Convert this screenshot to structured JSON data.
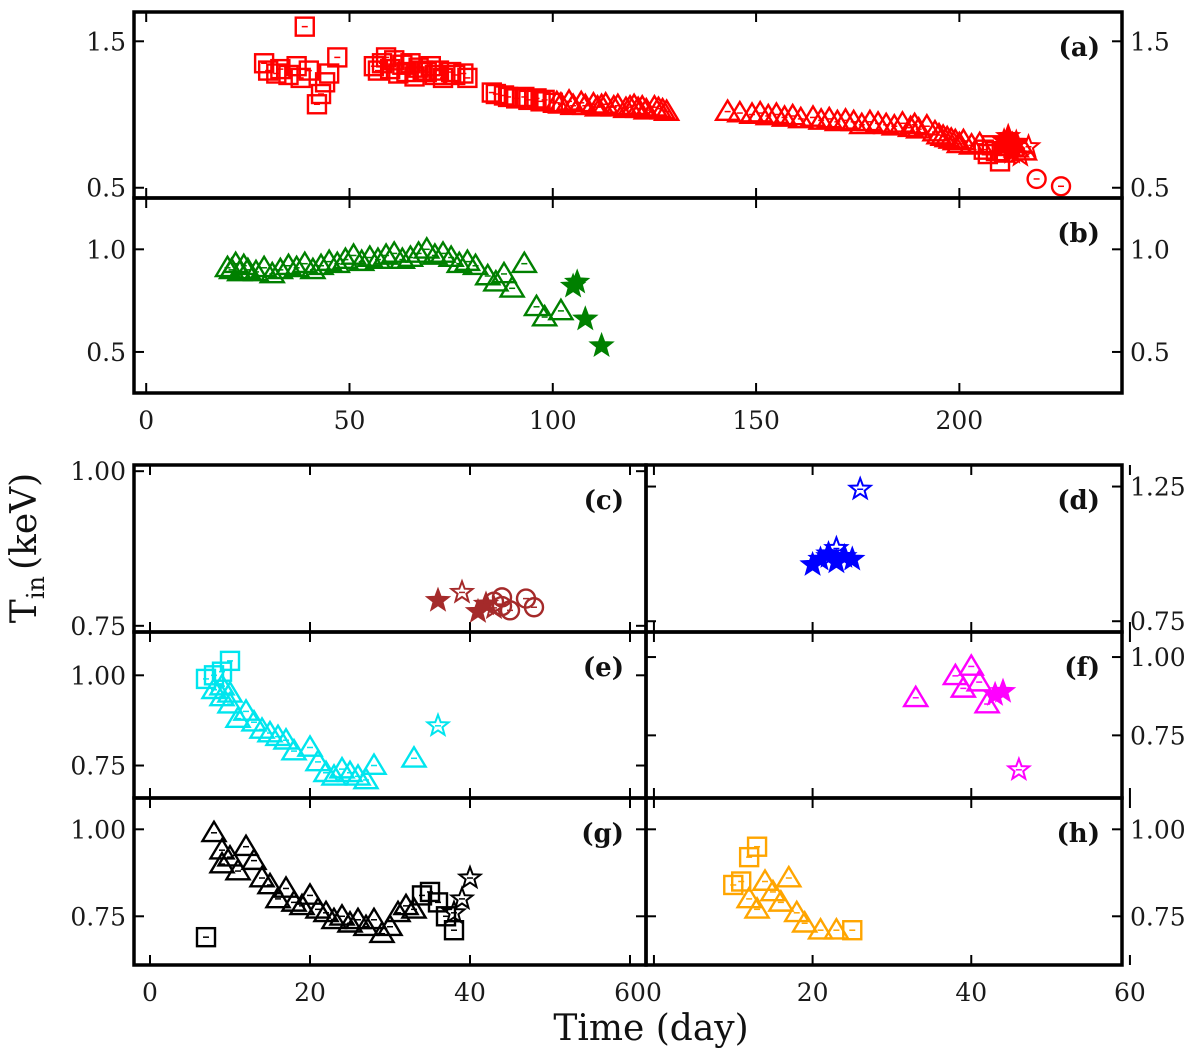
{
  "figure": {
    "xlabel": "Time (day)",
    "ylabel": "T",
    "ylabel_sub": "in",
    "ylabel_unit": "(keV)"
  },
  "chart_data": [
    {
      "panel": "(a)",
      "type": "scatter",
      "xlabel": "",
      "ylabel": "",
      "xlim": [
        -3,
        240
      ],
      "ylim": [
        0.43,
        1.7
      ],
      "xticks": [
        "0",
        "50",
        "100",
        "150",
        "200"
      ],
      "xtick_values": [
        0,
        50,
        100,
        150,
        200
      ],
      "yticks": [
        "0.5",
        "1.5"
      ],
      "ytick_values": [
        0.5,
        1.5
      ],
      "xtick_labels_shown": false,
      "series": [
        {
          "marker": "square",
          "color": "#ff0000",
          "filled": false,
          "x": [
            29,
            30,
            32,
            33,
            35,
            37,
            38,
            39,
            40,
            42,
            43,
            44,
            45,
            47,
            56,
            57,
            58,
            59,
            60,
            61,
            62,
            63,
            64,
            65,
            66,
            67,
            68,
            69,
            70,
            71,
            72,
            73,
            75,
            76,
            78,
            79,
            85,
            86,
            88,
            89,
            91,
            93,
            94,
            96,
            97,
            98,
            100,
            206,
            207,
            208,
            209,
            210,
            211
          ],
          "y": [
            1.35,
            1.3,
            1.28,
            1.31,
            1.27,
            1.33,
            1.25,
            1.6,
            1.3,
            1.07,
            1.14,
            1.22,
            1.28,
            1.39,
            1.33,
            1.3,
            1.35,
            1.39,
            1.31,
            1.37,
            1.28,
            1.34,
            1.29,
            1.35,
            1.26,
            1.32,
            1.3,
            1.29,
            1.33,
            1.27,
            1.3,
            1.25,
            1.29,
            1.27,
            1.28,
            1.25,
            1.15,
            1.14,
            1.13,
            1.12,
            1.11,
            1.12,
            1.1,
            1.11,
            1.09,
            1.1,
            1.08,
            0.76,
            0.73,
            0.79,
            0.75,
            0.68,
            0.74
          ]
        },
        {
          "marker": "triangle",
          "color": "#ff0000",
          "filled": false,
          "x": [
            101,
            102,
            104,
            105,
            107,
            108,
            110,
            111,
            112,
            113,
            115,
            116,
            118,
            119,
            120,
            121,
            122,
            123,
            125,
            126,
            127,
            128,
            143,
            146,
            149,
            151,
            153,
            155,
            157,
            159,
            161,
            164,
            166,
            168,
            170,
            172,
            174,
            176,
            178,
            180,
            182,
            184,
            186,
            188,
            189,
            190,
            192,
            194,
            195,
            196,
            197,
            198,
            199,
            200,
            201,
            203,
            205,
            212,
            213,
            214,
            216
          ],
          "y": [
            1.08,
            1.07,
            1.09,
            1.06,
            1.08,
            1.06,
            1.07,
            1.05,
            1.06,
            1.07,
            1.05,
            1.06,
            1.04,
            1.05,
            1.06,
            1.04,
            1.05,
            1.03,
            1.05,
            1.04,
            1.03,
            1.02,
            1.02,
            1.01,
            1.0,
            1.01,
            0.99,
            1.0,
            0.98,
            0.99,
            0.97,
            0.98,
            0.96,
            0.97,
            0.95,
            0.96,
            0.95,
            0.93,
            0.95,
            0.94,
            0.93,
            0.92,
            0.94,
            0.91,
            0.93,
            0.9,
            0.92,
            0.88,
            0.86,
            0.85,
            0.84,
            0.83,
            0.82,
            0.8,
            0.82,
            0.79,
            0.8,
            0.78,
            0.8,
            0.77,
            0.75
          ]
        },
        {
          "marker": "star",
          "color": "#ff0000",
          "filled": true,
          "x": [
            211,
            212,
            213,
            214
          ],
          "y": [
            0.82,
            0.85,
            0.74,
            0.81
          ]
        },
        {
          "marker": "star",
          "color": "#ff0000",
          "filled": false,
          "x": [
            215,
            217
          ],
          "y": [
            0.72,
            0.78
          ]
        },
        {
          "marker": "circle",
          "color": "#ff0000",
          "filled": false,
          "x": [
            219,
            225
          ],
          "y": [
            0.56,
            0.51
          ]
        }
      ]
    },
    {
      "panel": "(b)",
      "type": "scatter",
      "xlabel": "",
      "ylabel": "",
      "xlim": [
        -3,
        240
      ],
      "ylim": [
        0.3,
        1.25
      ],
      "xticks": [
        "0",
        "50",
        "100",
        "150",
        "200"
      ],
      "xtick_values": [
        0,
        50,
        100,
        150,
        200
      ],
      "yticks": [
        "0.5",
        "1.0"
      ],
      "ytick_values": [
        0.5,
        1.0
      ],
      "xtick_labels_shown": true,
      "series": [
        {
          "marker": "triangle",
          "color": "#008000",
          "filled": false,
          "x": [
            20,
            21,
            22,
            23,
            24,
            25,
            27,
            29,
            31,
            33,
            35,
            37,
            39,
            41,
            43,
            45,
            47,
            49,
            51,
            53,
            55,
            57,
            59,
            61,
            63,
            65,
            67,
            69,
            71,
            73,
            75,
            77,
            79,
            81,
            84,
            86,
            88,
            90,
            93,
            96,
            98,
            102
          ],
          "y": [
            0.91,
            0.9,
            0.93,
            0.89,
            0.92,
            0.9,
            0.89,
            0.91,
            0.88,
            0.9,
            0.92,
            0.91,
            0.93,
            0.9,
            0.92,
            0.94,
            0.93,
            0.95,
            0.97,
            0.94,
            0.96,
            0.95,
            0.97,
            0.98,
            0.95,
            0.96,
            0.98,
            1.0,
            0.97,
            0.98,
            0.96,
            0.93,
            0.94,
            0.92,
            0.87,
            0.84,
            0.88,
            0.81,
            0.93,
            0.72,
            0.67,
            0.7
          ]
        },
        {
          "marker": "star",
          "color": "#008000",
          "filled": true,
          "x": [
            105,
            106,
            108,
            112
          ],
          "y": [
            0.82,
            0.84,
            0.66,
            0.53
          ]
        }
      ]
    },
    {
      "panel": "(c)",
      "type": "scatter",
      "xlabel": "",
      "ylabel": "",
      "xlim": [
        -2,
        62
      ],
      "ylim": [
        0.74,
        1.01
      ],
      "xticks": [
        "0",
        "20",
        "40",
        "60"
      ],
      "xtick_values": [
        0,
        20,
        40,
        60
      ],
      "yticks": [
        "0.75",
        "1.00"
      ],
      "ytick_values": [
        0.75,
        1.0
      ],
      "xtick_labels_shown": false,
      "ytick_side": "left",
      "series": [
        {
          "marker": "star",
          "color": "#a52a2a",
          "filled": true,
          "x": [
            36,
            41,
            42
          ],
          "y": [
            0.791,
            0.773,
            0.785
          ]
        },
        {
          "marker": "star",
          "color": "#a52a2a",
          "filled": false,
          "x": [
            39,
            43
          ],
          "y": [
            0.804,
            0.779
          ]
        },
        {
          "marker": "circle",
          "color": "#a52a2a",
          "filled": false,
          "x": [
            43,
            44,
            44,
            45,
            47,
            48
          ],
          "y": [
            0.789,
            0.796,
            0.782,
            0.775,
            0.794,
            0.78
          ]
        }
      ]
    },
    {
      "panel": "(d)",
      "type": "scatter",
      "xlabel": "",
      "ylabel": "",
      "xlim": [
        -1,
        59
      ],
      "ylim": [
        0.71,
        1.33
      ],
      "xticks": [
        "0",
        "20",
        "40",
        "60"
      ],
      "xtick_values": [
        0,
        20,
        40,
        60
      ],
      "yticks": [
        "0.75",
        "1.25"
      ],
      "ytick_values": [
        0.75,
        1.25
      ],
      "xtick_labels_shown": false,
      "ytick_side": "right",
      "series": [
        {
          "marker": "star",
          "color": "#0000ff",
          "filled": true,
          "x": [
            20,
            21,
            22,
            23,
            24,
            25
          ],
          "y": [
            0.96,
            0.98,
            1.0,
            0.97,
            0.99,
            0.98
          ]
        },
        {
          "marker": "star",
          "color": "#0000ff",
          "filled": false,
          "x": [
            22,
            23,
            26
          ],
          "y": [
            0.99,
            1.02,
            1.24
          ]
        }
      ]
    },
    {
      "panel": "(e)",
      "type": "scatter",
      "xlabel": "",
      "ylabel": "",
      "xlim": [
        -2,
        62
      ],
      "ylim": [
        0.66,
        1.12
      ],
      "xticks": [
        "0",
        "20",
        "40",
        "60"
      ],
      "xtick_values": [
        0,
        20,
        40,
        60
      ],
      "yticks": [
        "0.75",
        "1.00"
      ],
      "ytick_values": [
        0.75,
        1.0
      ],
      "xtick_labels_shown": false,
      "ytick_side": "left",
      "series": [
        {
          "marker": "square",
          "color": "#00e5ee",
          "filled": false,
          "x": [
            7,
            8,
            9,
            10
          ],
          "y": [
            0.99,
            1.0,
            1.01,
            1.04
          ]
        },
        {
          "marker": "triangle",
          "color": "#00e5ee",
          "filled": false,
          "x": [
            8,
            9,
            9,
            10,
            10,
            11,
            12,
            13,
            14,
            15,
            16,
            17,
            18,
            20,
            21,
            22,
            23,
            24,
            25,
            26,
            27,
            28,
            33
          ],
          "y": [
            0.96,
            0.94,
            0.97,
            0.92,
            0.95,
            0.88,
            0.9,
            0.87,
            0.85,
            0.84,
            0.83,
            0.82,
            0.79,
            0.8,
            0.76,
            0.73,
            0.72,
            0.74,
            0.73,
            0.72,
            0.71,
            0.75,
            0.77
          ]
        },
        {
          "marker": "star",
          "color": "#00e5ee",
          "filled": false,
          "x": [
            36
          ],
          "y": [
            0.86
          ]
        }
      ]
    },
    {
      "panel": "(f)",
      "type": "scatter",
      "xlabel": "",
      "ylabel": "",
      "xlim": [
        -1,
        59
      ],
      "ylim": [
        0.55,
        1.08
      ],
      "xticks": [
        "0",
        "20",
        "40",
        "60"
      ],
      "xtick_values": [
        0,
        20,
        40,
        60
      ],
      "yticks": [
        "0.75",
        "1.00"
      ],
      "ytick_values": [
        0.75,
        1.0
      ],
      "xtick_labels_shown": false,
      "ytick_side": "right",
      "series": [
        {
          "marker": "triangle",
          "color": "#ff00ff",
          "filled": false,
          "x": [
            33,
            38,
            39,
            40,
            41,
            42
          ],
          "y": [
            0.87,
            0.94,
            0.9,
            0.97,
            0.92,
            0.85
          ]
        },
        {
          "marker": "star",
          "color": "#ff00ff",
          "filled": true,
          "x": [
            43,
            44
          ],
          "y": [
            0.88,
            0.89
          ]
        },
        {
          "marker": "star",
          "color": "#ff00ff",
          "filled": false,
          "x": [
            46
          ],
          "y": [
            0.64
          ]
        }
      ]
    },
    {
      "panel": "(g)",
      "type": "scatter",
      "xlabel": "",
      "ylabel": "",
      "xlim": [
        -2,
        62
      ],
      "ylim": [
        0.61,
        1.09
      ],
      "xticks": [
        "0",
        "20",
        "40",
        "60"
      ],
      "xtick_values": [
        0,
        20,
        40,
        60
      ],
      "yticks": [
        "0.75",
        "1.00"
      ],
      "ytick_values": [
        0.75,
        1.0
      ],
      "xtick_labels_shown": true,
      "ytick_side": "left",
      "series": [
        {
          "marker": "square",
          "color": "#000000",
          "filled": false,
          "x": [
            7,
            34,
            35,
            36,
            37,
            38
          ],
          "y": [
            0.69,
            0.81,
            0.82,
            0.79,
            0.75,
            0.71
          ]
        },
        {
          "marker": "triangle",
          "color": "#000000",
          "filled": false,
          "x": [
            8,
            9,
            9,
            10,
            11,
            12,
            13,
            14,
            15,
            16,
            17,
            18,
            19,
            20,
            21,
            22,
            23,
            24,
            25,
            26,
            27,
            28,
            29,
            30,
            31,
            32,
            33
          ],
          "y": [
            0.99,
            0.9,
            0.94,
            0.92,
            0.88,
            0.95,
            0.91,
            0.86,
            0.84,
            0.8,
            0.83,
            0.79,
            0.78,
            0.81,
            0.77,
            0.76,
            0.74,
            0.75,
            0.73,
            0.74,
            0.72,
            0.74,
            0.7,
            0.72,
            0.76,
            0.78,
            0.77
          ]
        },
        {
          "marker": "star",
          "color": "#000000",
          "filled": false,
          "x": [
            38,
            39,
            40
          ],
          "y": [
            0.76,
            0.8,
            0.86
          ]
        }
      ]
    },
    {
      "panel": "(h)",
      "type": "scatter",
      "xlabel": "",
      "ylabel": "",
      "xlim": [
        -1,
        59
      ],
      "ylim": [
        0.61,
        1.09
      ],
      "xticks": [
        "0",
        "20",
        "40",
        "60"
      ],
      "xtick_values": [
        0,
        20,
        40,
        60
      ],
      "yticks": [
        "0.75",
        "1.00"
      ],
      "ytick_values": [
        0.75,
        1.0
      ],
      "xtick_labels_shown": true,
      "ytick_side": "right",
      "series": [
        {
          "marker": "square",
          "color": "#ffa500",
          "filled": false,
          "x": [
            10,
            11,
            12,
            13,
            25
          ],
          "y": [
            0.84,
            0.85,
            0.92,
            0.95,
            0.71
          ]
        },
        {
          "marker": "triangle",
          "color": "#ffa500",
          "filled": false,
          "x": [
            12,
            13,
            14,
            15,
            16,
            17,
            18,
            19,
            21,
            23
          ],
          "y": [
            0.8,
            0.77,
            0.85,
            0.82,
            0.79,
            0.86,
            0.76,
            0.73,
            0.71,
            0.71
          ]
        }
      ]
    }
  ]
}
